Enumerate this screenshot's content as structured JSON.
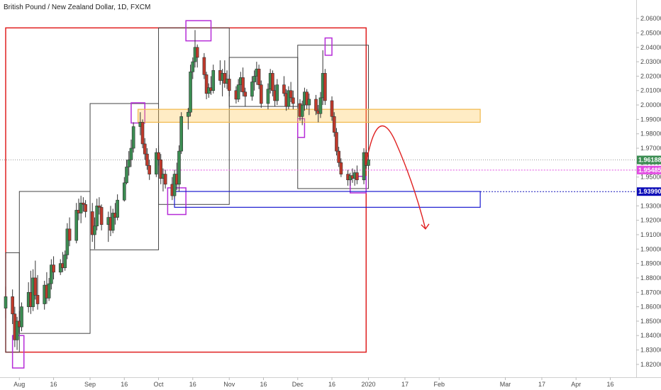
{
  "chart_data": {
    "type": "candlestick",
    "title": "British Pound / New Zealand Dollar, 1D, FXCM",
    "y_range": [
      1.8165,
      2.0635
    ],
    "y_ticks": [
      "2.06000",
      "2.05000",
      "2.04000",
      "2.03000",
      "2.02000",
      "2.01000",
      "2.00000",
      "1.99000",
      "1.98000",
      "1.97000",
      "1.96000",
      "1.95000",
      "1.94000",
      "1.93000",
      "1.92000",
      "1.91000",
      "1.90000",
      "1.89000",
      "1.88000",
      "1.87000",
      "1.86000",
      "1.85000",
      "1.84000",
      "1.83000",
      "1.82000"
    ],
    "x_range": [
      "2019-07-26",
      "2020-04-23"
    ],
    "x_ticks": [
      {
        "label": "Aug",
        "date": "2019-08-01"
      },
      {
        "label": "16",
        "date": "2019-08-16"
      },
      {
        "label": "Sep",
        "date": "2019-09-01"
      },
      {
        "label": "16",
        "date": "2019-09-16"
      },
      {
        "label": "Oct",
        "date": "2019-10-01"
      },
      {
        "label": "16",
        "date": "2019-10-16"
      },
      {
        "label": "Nov",
        "date": "2019-11-01"
      },
      {
        "label": "16",
        "date": "2019-11-16"
      },
      {
        "label": "Dec",
        "date": "2019-12-01"
      },
      {
        "label": "16",
        "date": "2019-12-16"
      },
      {
        "label": "2020",
        "date": "2020-01-01"
      },
      {
        "label": "17",
        "date": "2020-01-17"
      },
      {
        "label": "Feb",
        "date": "2020-02-01"
      },
      {
        "label": "Mar",
        "date": "2020-03-01"
      },
      {
        "label": "17",
        "date": "2020-03-17"
      },
      {
        "label": "Apr",
        "date": "2020-04-01"
      },
      {
        "label": "16",
        "date": "2020-04-16"
      }
    ],
    "price_labels": [
      {
        "text": "1.96188",
        "value": 1.96188,
        "bg": "#3b8d52",
        "line": "dotted-gray"
      },
      {
        "text": "1.95485",
        "value": 1.95485,
        "bg": "#e24ce2",
        "line": "dotted-magenta"
      },
      {
        "text": "1.93990",
        "value": 1.9399,
        "bg": "#0d0db8",
        "line": "dotted-blue"
      }
    ],
    "candles": [
      {
        "date": "2019-07-26",
        "o": 1.859,
        "h": 1.874,
        "l": 1.852,
        "c": 1.867
      },
      {
        "date": "2019-07-29",
        "o": 1.867,
        "h": 1.872,
        "l": 1.848,
        "c": 1.855
      },
      {
        "date": "2019-07-30",
        "o": 1.855,
        "h": 1.86,
        "l": 1.832,
        "c": 1.837
      },
      {
        "date": "2019-07-31",
        "o": 1.837,
        "h": 1.853,
        "l": 1.83,
        "c": 1.85
      },
      {
        "date": "2019-08-01",
        "o": 1.85,
        "h": 1.857,
        "l": 1.842,
        "c": 1.846
      },
      {
        "date": "2019-08-02",
        "o": 1.846,
        "h": 1.863,
        "l": 1.843,
        "c": 1.86
      },
      {
        "date": "2019-08-05",
        "o": 1.86,
        "h": 1.877,
        "l": 1.856,
        "c": 1.87
      },
      {
        "date": "2019-08-06",
        "o": 1.87,
        "h": 1.885,
        "l": 1.855,
        "c": 1.86
      },
      {
        "date": "2019-08-07",
        "o": 1.86,
        "h": 1.886,
        "l": 1.857,
        "c": 1.88
      },
      {
        "date": "2019-08-08",
        "o": 1.88,
        "h": 1.892,
        "l": 1.865,
        "c": 1.868
      },
      {
        "date": "2019-08-09",
        "o": 1.868,
        "h": 1.882,
        "l": 1.858,
        "c": 1.862
      },
      {
        "date": "2019-08-12",
        "o": 1.862,
        "h": 1.878,
        "l": 1.858,
        "c": 1.875
      },
      {
        "date": "2019-08-13",
        "o": 1.875,
        "h": 1.884,
        "l": 1.862,
        "c": 1.866
      },
      {
        "date": "2019-08-14",
        "o": 1.866,
        "h": 1.88,
        "l": 1.864,
        "c": 1.876
      },
      {
        "date": "2019-08-15",
        "o": 1.876,
        "h": 1.893,
        "l": 1.872,
        "c": 1.889
      },
      {
        "date": "2019-08-16",
        "o": 1.889,
        "h": 1.895,
        "l": 1.879,
        "c": 1.884
      },
      {
        "date": "2019-08-19",
        "o": 1.884,
        "h": 1.893,
        "l": 1.882,
        "c": 1.89
      },
      {
        "date": "2019-08-20",
        "o": 1.89,
        "h": 1.898,
        "l": 1.884,
        "c": 1.887
      },
      {
        "date": "2019-08-21",
        "o": 1.887,
        "h": 1.899,
        "l": 1.885,
        "c": 1.896
      },
      {
        "date": "2019-08-22",
        "o": 1.896,
        "h": 1.918,
        "l": 1.893,
        "c": 1.914
      },
      {
        "date": "2019-08-23",
        "o": 1.914,
        "h": 1.922,
        "l": 1.902,
        "c": 1.906
      },
      {
        "date": "2019-08-26",
        "o": 1.906,
        "h": 1.932,
        "l": 1.904,
        "c": 1.927
      },
      {
        "date": "2019-08-27",
        "o": 1.927,
        "h": 1.935,
        "l": 1.92,
        "c": 1.925
      },
      {
        "date": "2019-08-28",
        "o": 1.925,
        "h": 1.937,
        "l": 1.918,
        "c": 1.932
      },
      {
        "date": "2019-08-29",
        "o": 1.932,
        "h": 1.936,
        "l": 1.926,
        "c": 1.931
      },
      {
        "date": "2019-08-30",
        "o": 1.931,
        "h": 1.934,
        "l": 1.922,
        "c": 1.926
      },
      {
        "date": "2019-09-02",
        "o": 1.926,
        "h": 1.932,
        "l": 1.905,
        "c": 1.91
      },
      {
        "date": "2019-09-03",
        "o": 1.91,
        "h": 1.922,
        "l": 1.9,
        "c": 1.916
      },
      {
        "date": "2019-09-04",
        "o": 1.916,
        "h": 1.935,
        "l": 1.913,
        "c": 1.93
      },
      {
        "date": "2019-09-05",
        "o": 1.93,
        "h": 1.936,
        "l": 1.924,
        "c": 1.929
      },
      {
        "date": "2019-09-06",
        "o": 1.929,
        "h": 1.931,
        "l": 1.913,
        "c": 1.917
      },
      {
        "date": "2019-09-09",
        "o": 1.917,
        "h": 1.926,
        "l": 1.905,
        "c": 1.922
      },
      {
        "date": "2019-09-10",
        "o": 1.922,
        "h": 1.93,
        "l": 1.909,
        "c": 1.913
      },
      {
        "date": "2019-09-11",
        "o": 1.913,
        "h": 1.928,
        "l": 1.911,
        "c": 1.925
      },
      {
        "date": "2019-09-12",
        "o": 1.925,
        "h": 1.932,
        "l": 1.917,
        "c": 1.922
      },
      {
        "date": "2019-09-13",
        "o": 1.922,
        "h": 1.938,
        "l": 1.92,
        "c": 1.934
      },
      {
        "date": "2019-09-16",
        "o": 1.934,
        "h": 1.95,
        "l": 1.933,
        "c": 1.946
      },
      {
        "date": "2019-09-17",
        "o": 1.946,
        "h": 1.962,
        "l": 1.945,
        "c": 1.957
      },
      {
        "date": "2019-09-18",
        "o": 1.957,
        "h": 1.968,
        "l": 1.951,
        "c": 1.962
      },
      {
        "date": "2019-09-19",
        "o": 1.962,
        "h": 1.976,
        "l": 1.957,
        "c": 1.97
      },
      {
        "date": "2019-09-20",
        "o": 1.97,
        "h": 1.988,
        "l": 1.967,
        "c": 1.985
      },
      {
        "date": "2019-09-23",
        "o": 1.985,
        "h": 1.995,
        "l": 1.979,
        "c": 1.988
      },
      {
        "date": "2019-09-24",
        "o": 1.988,
        "h": 1.99,
        "l": 1.97,
        "c": 1.973
      },
      {
        "date": "2019-09-25",
        "o": 1.973,
        "h": 1.977,
        "l": 1.962,
        "c": 1.966
      },
      {
        "date": "2019-09-26",
        "o": 1.966,
        "h": 1.97,
        "l": 1.955,
        "c": 1.958
      },
      {
        "date": "2019-09-27",
        "o": 1.958,
        "h": 1.962,
        "l": 1.948,
        "c": 1.952
      },
      {
        "date": "2019-09-30",
        "o": 1.952,
        "h": 1.97,
        "l": 1.95,
        "c": 1.967
      },
      {
        "date": "2019-10-01",
        "o": 1.967,
        "h": 1.972,
        "l": 1.958,
        "c": 1.962
      },
      {
        "date": "2019-10-02",
        "o": 1.962,
        "h": 1.966,
        "l": 1.945,
        "c": 1.949
      },
      {
        "date": "2019-10-03",
        "o": 1.949,
        "h": 1.956,
        "l": 1.94,
        "c": 1.952
      },
      {
        "date": "2019-10-04",
        "o": 1.952,
        "h": 1.955,
        "l": 1.942,
        "c": 1.945
      },
      {
        "date": "2019-10-07",
        "o": 1.945,
        "h": 1.95,
        "l": 1.934,
        "c": 1.937
      },
      {
        "date": "2019-10-08",
        "o": 1.937,
        "h": 1.955,
        "l": 1.935,
        "c": 1.952
      },
      {
        "date": "2019-10-09",
        "o": 1.952,
        "h": 1.96,
        "l": 1.941,
        "c": 1.945
      },
      {
        "date": "2019-10-10",
        "o": 1.945,
        "h": 1.972,
        "l": 1.94,
        "c": 1.968
      },
      {
        "date": "2019-10-11",
        "o": 1.968,
        "h": 1.995,
        "l": 1.966,
        "c": 1.992
      },
      {
        "date": "2019-10-14",
        "o": 1.992,
        "h": 1.998,
        "l": 1.983,
        "c": 1.995
      },
      {
        "date": "2019-10-15",
        "o": 1.995,
        "h": 2.028,
        "l": 1.992,
        "c": 2.023
      },
      {
        "date": "2019-10-16",
        "o": 2.023,
        "h": 2.033,
        "l": 2.018,
        "c": 2.03
      },
      {
        "date": "2019-10-17",
        "o": 2.03,
        "h": 2.052,
        "l": 2.026,
        "c": 2.04
      },
      {
        "date": "2019-10-18",
        "o": 2.04,
        "h": 2.042,
        "l": 2.026,
        "c": 2.033
      },
      {
        "date": "2019-10-21",
        "o": 2.033,
        "h": 2.036,
        "l": 2.018,
        "c": 2.021
      },
      {
        "date": "2019-10-22",
        "o": 2.021,
        "h": 2.023,
        "l": 2.004,
        "c": 2.008
      },
      {
        "date": "2019-10-23",
        "o": 2.008,
        "h": 2.015,
        "l": 2.005,
        "c": 2.012
      },
      {
        "date": "2019-10-24",
        "o": 2.012,
        "h": 2.02,
        "l": 2.007,
        "c": 2.01
      },
      {
        "date": "2019-10-25",
        "o": 2.01,
        "h": 2.028,
        "l": 2.008,
        "c": 2.024
      },
      {
        "date": "2019-10-28",
        "o": 2.024,
        "h": 2.031,
        "l": 2.014,
        "c": 2.017
      },
      {
        "date": "2019-10-29",
        "o": 2.017,
        "h": 2.025,
        "l": 2.006,
        "c": 2.022
      },
      {
        "date": "2019-10-30",
        "o": 2.022,
        "h": 2.031,
        "l": 2.012,
        "c": 2.015
      },
      {
        "date": "2019-10-31",
        "o": 2.015,
        "h": 2.024,
        "l": 2.011,
        "c": 2.018
      },
      {
        "date": "2019-11-01",
        "o": 2.018,
        "h": 2.021,
        "l": 2.006,
        "c": 2.01
      },
      {
        "date": "2019-11-04",
        "o": 2.01,
        "h": 2.013,
        "l": 2.001,
        "c": 2.004
      },
      {
        "date": "2019-11-05",
        "o": 2.004,
        "h": 2.018,
        "l": 2.002,
        "c": 2.014
      },
      {
        "date": "2019-11-06",
        "o": 2.014,
        "h": 2.023,
        "l": 2.009,
        "c": 2.019
      },
      {
        "date": "2019-11-07",
        "o": 2.019,
        "h": 2.026,
        "l": 2.006,
        "c": 2.009
      },
      {
        "date": "2019-11-08",
        "o": 2.009,
        "h": 2.012,
        "l": 1.999,
        "c": 2.006
      },
      {
        "date": "2019-11-11",
        "o": 2.006,
        "h": 2.02,
        "l": 2.003,
        "c": 2.016
      },
      {
        "date": "2019-11-12",
        "o": 2.016,
        "h": 2.024,
        "l": 2.01,
        "c": 2.02
      },
      {
        "date": "2019-11-13",
        "o": 2.02,
        "h": 2.03,
        "l": 2.014,
        "c": 2.025
      },
      {
        "date": "2019-11-14",
        "o": 2.025,
        "h": 2.028,
        "l": 2.011,
        "c": 2.014
      },
      {
        "date": "2019-11-15",
        "o": 2.014,
        "h": 2.017,
        "l": 1.998,
        "c": 2.001
      },
      {
        "date": "2019-11-18",
        "o": 2.001,
        "h": 2.015,
        "l": 1.997,
        "c": 2.011
      },
      {
        "date": "2019-11-19",
        "o": 2.011,
        "h": 2.025,
        "l": 2.008,
        "c": 2.022
      },
      {
        "date": "2019-11-20",
        "o": 2.022,
        "h": 2.024,
        "l": 2.006,
        "c": 2.01
      },
      {
        "date": "2019-11-21",
        "o": 2.01,
        "h": 2.014,
        "l": 1.999,
        "c": 2.003
      },
      {
        "date": "2019-11-22",
        "o": 2.003,
        "h": 2.018,
        "l": 2.0,
        "c": 2.014
      },
      {
        "date": "2019-11-25",
        "o": 2.014,
        "h": 2.02,
        "l": 2.006,
        "c": 2.008
      },
      {
        "date": "2019-11-26",
        "o": 2.008,
        "h": 2.011,
        "l": 1.996,
        "c": 1.999
      },
      {
        "date": "2019-11-27",
        "o": 1.999,
        "h": 2.013,
        "l": 1.997,
        "c": 2.01
      },
      {
        "date": "2019-11-28",
        "o": 2.01,
        "h": 2.016,
        "l": 2.002,
        "c": 2.005
      },
      {
        "date": "2019-11-29",
        "o": 2.005,
        "h": 2.01,
        "l": 1.997,
        "c": 2.001
      },
      {
        "date": "2019-12-02",
        "o": 2.001,
        "h": 2.004,
        "l": 1.989,
        "c": 1.992
      },
      {
        "date": "2019-12-03",
        "o": 1.992,
        "h": 2.003,
        "l": 1.986,
        "c": 2.0
      },
      {
        "date": "2019-12-04",
        "o": 2.0,
        "h": 2.012,
        "l": 1.996,
        "c": 2.009
      },
      {
        "date": "2019-12-05",
        "o": 2.009,
        "h": 2.011,
        "l": 1.997,
        "c": 2.0
      },
      {
        "date": "2019-12-06",
        "o": 2.0,
        "h": 2.008,
        "l": 1.993,
        "c": 2.004
      },
      {
        "date": "2019-12-09",
        "o": 2.004,
        "h": 2.007,
        "l": 1.993,
        "c": 1.996
      },
      {
        "date": "2019-12-10",
        "o": 1.996,
        "h": 2.0,
        "l": 1.988,
        "c": 1.994
      },
      {
        "date": "2019-12-11",
        "o": 1.994,
        "h": 2.009,
        "l": 1.991,
        "c": 2.005
      },
      {
        "date": "2019-12-12",
        "o": 2.005,
        "h": 2.038,
        "l": 2.0,
        "c": 2.022
      },
      {
        "date": "2019-12-13",
        "o": 2.022,
        "h": 2.025,
        "l": 2.0,
        "c": 2.003
      },
      {
        "date": "2019-12-16",
        "o": 2.003,
        "h": 2.006,
        "l": 1.989,
        "c": 1.992
      },
      {
        "date": "2019-12-17",
        "o": 1.992,
        "h": 1.995,
        "l": 1.978,
        "c": 1.981
      },
      {
        "date": "2019-12-18",
        "o": 1.981,
        "h": 1.984,
        "l": 1.965,
        "c": 1.968
      },
      {
        "date": "2019-12-19",
        "o": 1.968,
        "h": 1.971,
        "l": 1.957,
        "c": 1.96
      },
      {
        "date": "2019-12-20",
        "o": 1.96,
        "h": 1.963,
        "l": 1.95,
        "c": 1.952
      },
      {
        "date": "2019-12-23",
        "o": 1.952,
        "h": 1.955,
        "l": 1.944,
        "c": 1.948
      },
      {
        "date": "2019-12-24",
        "o": 1.948,
        "h": 1.953,
        "l": 1.944,
        "c": 1.951
      },
      {
        "date": "2019-12-25",
        "o": 1.951,
        "h": 1.956,
        "l": 1.946,
        "c": 1.949
      },
      {
        "date": "2019-12-26",
        "o": 1.949,
        "h": 1.955,
        "l": 1.944,
        "c": 1.953
      },
      {
        "date": "2019-12-27",
        "o": 1.953,
        "h": 1.958,
        "l": 1.945,
        "c": 1.948
      },
      {
        "date": "2019-12-30",
        "o": 1.948,
        "h": 1.97,
        "l": 1.945,
        "c": 1.967
      },
      {
        "date": "2019-12-31",
        "o": 1.967,
        "h": 1.969,
        "l": 1.956,
        "c": 1.958
      },
      {
        "date": "2020-01-01",
        "o": 1.958,
        "h": 1.966,
        "l": 1.955,
        "c": 1.962
      }
    ],
    "rectangles": [
      {
        "color": "#e02020",
        "width": 1.5,
        "d1": "2019-07-26",
        "p1": 2.0535,
        "d2": "2019-12-31",
        "p2": 1.8285
      },
      {
        "color": "#444444",
        "width": 1,
        "d1": "2019-07-26",
        "p1": 1.8975,
        "d2": "2019-08-01",
        "p2": 1.8285
      },
      {
        "color": "#444444",
        "width": 1,
        "d1": "2019-08-01",
        "p1": 1.94,
        "d2": "2019-09-01",
        "p2": 1.8415
      },
      {
        "color": "#444444",
        "width": 1,
        "d1": "2019-09-01",
        "p1": 2.001,
        "d2": "2019-10-01",
        "p2": 1.8995
      },
      {
        "color": "#444444",
        "width": 1,
        "d1": "2019-10-01",
        "p1": 2.0535,
        "d2": "2019-11-01",
        "p2": 1.931
      },
      {
        "color": "#444444",
        "width": 1,
        "d1": "2019-11-01",
        "p1": 2.033,
        "d2": "2019-12-01",
        "p2": 1.999
      },
      {
        "color": "#444444",
        "width": 1,
        "d1": "2019-12-01",
        "p1": 2.0415,
        "d2": "2020-01-01",
        "p2": 1.942
      },
      {
        "color": "#b62cd8",
        "width": 1.5,
        "d1": "2019-07-29",
        "p1": 1.84,
        "d2": "2019-08-03",
        "p2": 1.8175
      },
      {
        "color": "#b62cd8",
        "width": 1.5,
        "d1": "2019-09-19",
        "p1": 2.0015,
        "d2": "2019-09-25",
        "p2": 1.9875
      },
      {
        "color": "#b62cd8",
        "width": 1.5,
        "d1": "2019-10-05",
        "p1": 1.9425,
        "d2": "2019-10-13",
        "p2": 1.924
      },
      {
        "color": "#b62cd8",
        "width": 1.5,
        "d1": "2019-10-13",
        "p1": 2.0585,
        "d2": "2019-10-24",
        "p2": 2.0445
      },
      {
        "color": "#b62cd8",
        "width": 1.5,
        "d1": "2019-12-01",
        "p1": 1.9905,
        "d2": "2019-12-04",
        "p2": 1.9775
      },
      {
        "color": "#b62cd8",
        "width": 1.5,
        "d1": "2019-12-13",
        "p1": 2.0465,
        "d2": "2019-12-16",
        "p2": 2.0345
      },
      {
        "color": "#b62cd8",
        "width": 1.5,
        "d1": "2019-12-24",
        "p1": 1.9505,
        "d2": "2019-12-31",
        "p2": 1.939
      }
    ],
    "zones": [
      {
        "color": "#f0b84a",
        "fill": "rgba(255,200,90,0.35)",
        "d1": "2019-09-22",
        "p1": 1.997,
        "d2": "2020-02-19",
        "p2": 1.988
      },
      {
        "color": "#1a1ad0",
        "fill": "rgba(255,255,255,0)",
        "d1": "2019-10-08",
        "p1": 1.94,
        "d2": "2020-02-19",
        "p2": 1.929
      }
    ],
    "projection": {
      "color": "#e02020",
      "points": [
        {
          "d": "2019-12-31",
          "p": 1.9595
        },
        {
          "d": "2020-01-05",
          "p": 1.9905
        },
        {
          "d": "2020-01-13",
          "p": 1.974
        },
        {
          "d": "2020-01-26",
          "p": 1.914
        }
      ],
      "arrow_tip": {
        "d": "2020-01-26",
        "p": 1.914
      }
    }
  }
}
